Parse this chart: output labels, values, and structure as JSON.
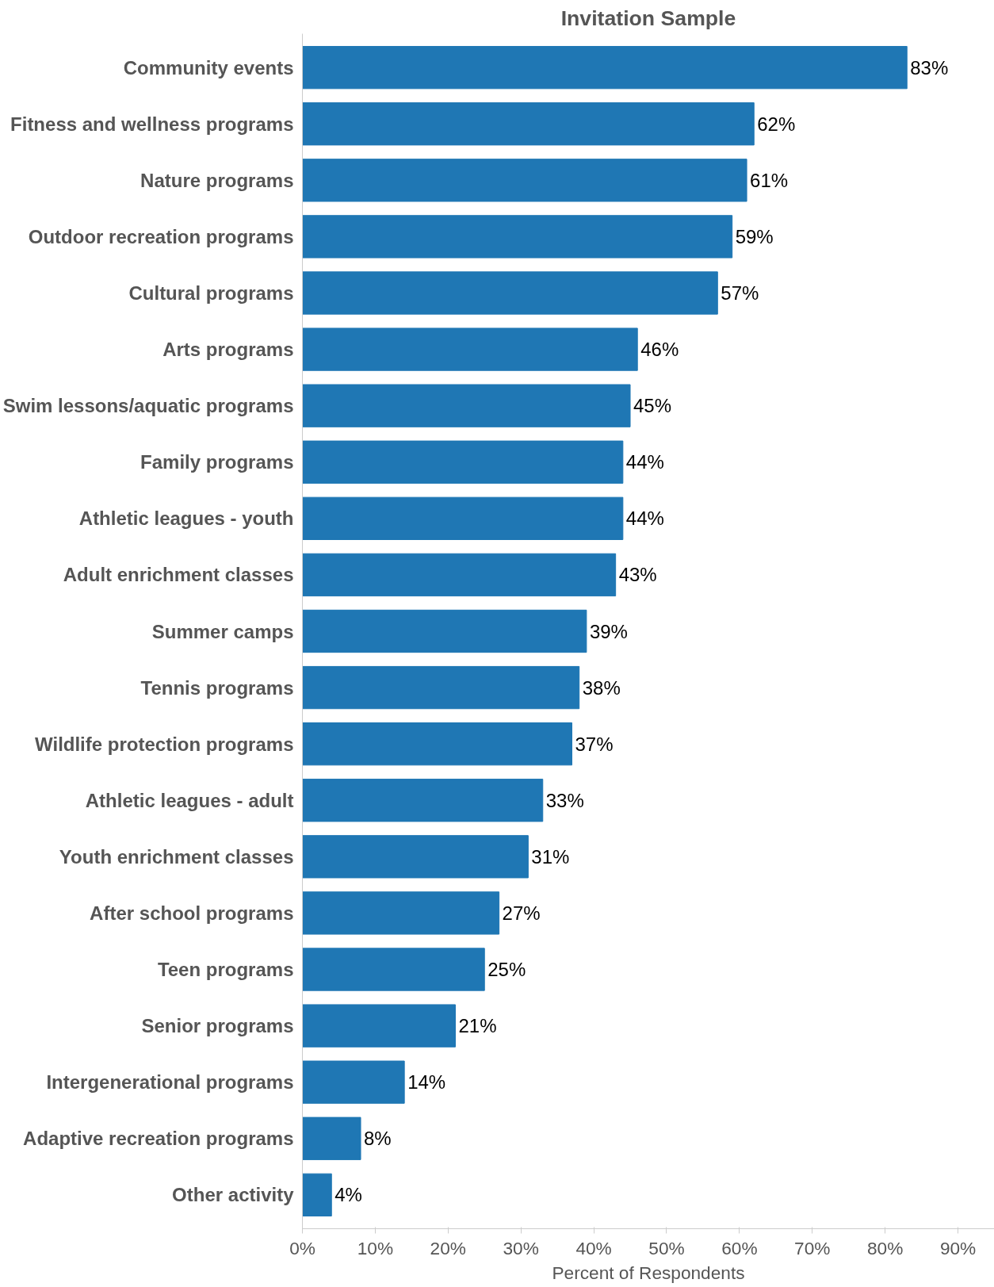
{
  "chart_data": {
    "type": "bar",
    "orientation": "horizontal",
    "title": "Invitation Sample",
    "xlabel": "Percent of Respondents",
    "categories": [
      "Community events",
      "Fitness and wellness programs",
      "Nature programs",
      "Outdoor recreation programs",
      "Cultural programs",
      "Arts programs",
      "Swim lessons/aquatic programs",
      "Family programs",
      "Athletic leagues - youth",
      "Adult enrichment classes",
      "Summer camps",
      "Tennis programs",
      "Wildlife protection programs",
      "Athletic leagues - adult",
      "Youth enrichment classes",
      "After school programs",
      "Teen programs",
      "Senior programs",
      "Intergenerational programs",
      "Adaptive recreation programs",
      "Other activity"
    ],
    "values": [
      83,
      62,
      61,
      59,
      57,
      46,
      45,
      44,
      44,
      43,
      39,
      38,
      37,
      33,
      31,
      27,
      25,
      21,
      14,
      8,
      4
    ],
    "value_labels": [
      "83%",
      "62%",
      "61%",
      "59%",
      "57%",
      "46%",
      "45%",
      "44%",
      "44%",
      "43%",
      "39%",
      "38%",
      "37%",
      "33%",
      "31%",
      "27%",
      "25%",
      "21%",
      "14%",
      "8%",
      "4%"
    ],
    "color": "#1f77b4",
    "xlim": [
      0,
      95
    ],
    "xticks": [
      {
        "value": 0,
        "label": "0%"
      },
      {
        "value": 10,
        "label": "10%"
      },
      {
        "value": 20,
        "label": "20%"
      },
      {
        "value": 30,
        "label": "30%"
      },
      {
        "value": 40,
        "label": "40%"
      },
      {
        "value": 50,
        "label": "50%"
      },
      {
        "value": 60,
        "label": "60%"
      },
      {
        "value": 70,
        "label": "70%"
      },
      {
        "value": 80,
        "label": "80%"
      },
      {
        "value": 90,
        "label": "90%"
      }
    ],
    "grid": false
  }
}
